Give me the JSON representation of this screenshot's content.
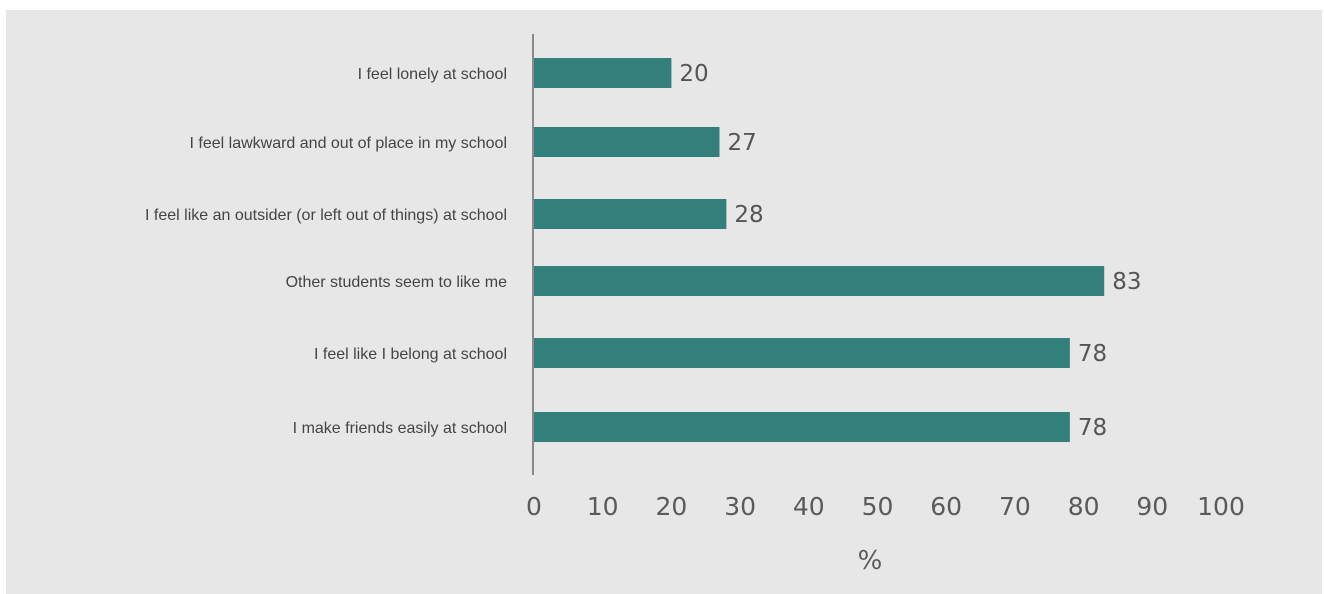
{
  "chart_data": {
    "type": "bar",
    "orientation": "horizontal",
    "categories": [
      "I feel lonely at school",
      "I feel lawkward and out of place in my school",
      "I feel like an outsider (or left out of things) at school",
      "Other students seem to like me",
      "I feel like I belong at school",
      "I make friends easily at school"
    ],
    "values": [
      20,
      27,
      28,
      83,
      78,
      78
    ],
    "xlabel": "%",
    "xlim": [
      0,
      100
    ],
    "xticks": [
      "0",
      "10",
      "20",
      "30",
      "40",
      "50",
      "60",
      "70",
      "80",
      "90",
      "100"
    ],
    "grid": false,
    "legend": "none",
    "colors": {
      "bar": "#337f7c",
      "background": "#e7e7e7",
      "axis": "#8a8a8a"
    }
  }
}
